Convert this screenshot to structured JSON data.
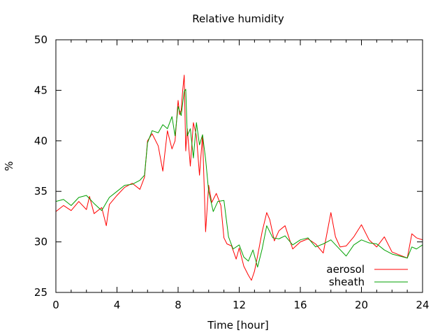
{
  "chart_data": {
    "type": "line",
    "title": "Relative humidity",
    "xlabel": "Time [hour]",
    "ylabel": "%",
    "xlim": [
      0,
      24
    ],
    "ylim": [
      25,
      50
    ],
    "x_ticks": [
      "0",
      "4",
      "8",
      "12",
      "16",
      "20",
      "24"
    ],
    "y_ticks": [
      "25",
      "30",
      "35",
      "40",
      "45",
      "50"
    ],
    "x_tick_values": [
      0,
      4,
      8,
      12,
      16,
      20,
      24
    ],
    "y_tick_values": [
      25,
      30,
      35,
      40,
      45,
      50
    ],
    "grid": false,
    "legend_position": "bottom-right",
    "series": [
      {
        "name": "aerosol",
        "color": "#ff0000",
        "x": [
          0,
          0.5,
          1,
          1.5,
          2,
          2.2,
          2.5,
          3,
          3.3,
          3.5,
          4,
          4.5,
          5,
          5.5,
          5.8,
          6,
          6.3,
          6.7,
          7,
          7.3,
          7.6,
          7.8,
          8,
          8.1,
          8.2,
          8.3,
          8.4,
          8.5,
          8.6,
          8.8,
          9,
          9.2,
          9.4,
          9.6,
          9.8,
          10,
          10.2,
          10.5,
          10.8,
          11,
          11.2,
          11.5,
          11.8,
          12,
          12.3,
          12.6,
          12.8,
          13,
          13.2,
          13.5,
          13.8,
          14,
          14.3,
          14.6,
          15,
          15.5,
          16,
          16.5,
          17,
          17.5,
          18,
          18.3,
          18.6,
          19,
          19.5,
          20,
          20.5,
          21,
          21.5,
          22,
          22.5,
          23,
          23.3,
          23.6,
          24
        ],
        "y": [
          33,
          33.6,
          33.1,
          34,
          33.2,
          34.5,
          32.8,
          33.4,
          31.6,
          33.7,
          34.6,
          35.4,
          35.8,
          35.2,
          36.4,
          40,
          40.7,
          39.5,
          37,
          41,
          39.2,
          40,
          44,
          42.6,
          43,
          45,
          46.5,
          39,
          41.2,
          37.5,
          41.8,
          40.5,
          36.6,
          40.6,
          31,
          35.6,
          33.9,
          34.8,
          33.6,
          30.4,
          29.8,
          29.6,
          28.3,
          29.4,
          27.6,
          26.7,
          26.2,
          27.1,
          28.6,
          31,
          32.9,
          32.2,
          30.1,
          31.1,
          31.6,
          29.3,
          30,
          30.3,
          29.8,
          28.9,
          32.9,
          30.5,
          29.5,
          29.6,
          30.5,
          31.7,
          30.2,
          29.5,
          30.5,
          29,
          28.7,
          28.4,
          30.8,
          30.4,
          30.2
        ]
      },
      {
        "name": "sheath",
        "color": "#00a000",
        "x": [
          0,
          0.5,
          1,
          1.5,
          2,
          2.5,
          3,
          3.5,
          4,
          4.5,
          5,
          5.5,
          5.8,
          6,
          6.3,
          6.7,
          7,
          7.3,
          7.6,
          7.8,
          8,
          8.2,
          8.4,
          8.5,
          8.6,
          8.8,
          9,
          9.2,
          9.4,
          9.6,
          9.8,
          10,
          10.3,
          10.6,
          11,
          11.3,
          11.6,
          12,
          12.3,
          12.6,
          12.9,
          13.2,
          13.5,
          13.8,
          14.2,
          14.6,
          15,
          15.5,
          16,
          16.5,
          17,
          17.5,
          18,
          18.5,
          19,
          19.5,
          20,
          20.5,
          21,
          21.5,
          22,
          22.5,
          23,
          23.3,
          23.6,
          24
        ],
        "y": [
          34,
          34.2,
          33.6,
          34.4,
          34.6,
          33.8,
          33.1,
          34.4,
          35,
          35.6,
          35.7,
          36.1,
          36.6,
          39.8,
          41,
          40.8,
          41.6,
          41.2,
          42.4,
          40.5,
          43.4,
          42.5,
          44.9,
          45.1,
          40.5,
          41.2,
          38.3,
          41.8,
          39.6,
          40.6,
          38.2,
          35,
          33,
          34,
          34.1,
          30.5,
          29.3,
          29.7,
          28.5,
          28.1,
          29.2,
          27.5,
          29.3,
          31.6,
          30.4,
          30.3,
          30.6,
          29.7,
          30.2,
          30.4,
          29.5,
          29.8,
          30.2,
          29.4,
          28.6,
          29.7,
          30.2,
          29.9,
          29.8,
          29.2,
          28.8,
          28.6,
          28.4,
          29.5,
          29.3,
          29.7
        ]
      }
    ]
  }
}
